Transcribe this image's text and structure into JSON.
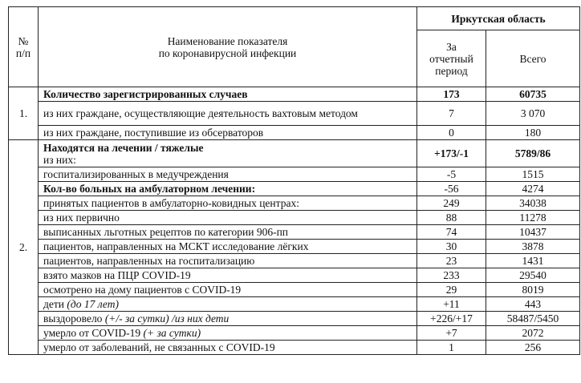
{
  "header": {
    "num": "№\nп/п",
    "name_line1": "Наименование показателя",
    "name_line2": "по коронавирусной инфекции",
    "region": "Иркутская область",
    "period": "За\nотчетный\nпериод",
    "total": "Всего"
  },
  "sections": [
    {
      "num": "1.",
      "rows": [
        {
          "text": "Количество зарегистрированных случаев",
          "bold": true,
          "period": "173",
          "total": "60735"
        },
        {
          "text": "из них граждане, осуществляющие деятельность вахтовым методом",
          "justify": true,
          "period": "7",
          "total": "3 070"
        },
        {
          "text": "из них граждане, поступившие из обсерваторов",
          "period": "0",
          "total": "180"
        }
      ]
    },
    {
      "num": "2.",
      "rows": [
        {
          "text": "Находятся на лечении / тяжелые",
          "bold": true,
          "sub": "из них:",
          "period": "+173/-1",
          "total": "5789/86",
          "bold_values": true
        },
        {
          "text": "госпитализированных в медучреждения",
          "period": "-5",
          "total": "1515"
        },
        {
          "text": "Кол-во больных на амбулаторном лечении:",
          "bold": true,
          "period": "-56",
          "total": "4274"
        },
        {
          "text": "принятых пациентов в амбулаторно-ковидных центрах:",
          "period": "249",
          "total": "34038"
        },
        {
          "text": "из них первично",
          "period": "88",
          "total": "11278"
        },
        {
          "text": "выписанных льготных рецептов по категории 906-пп",
          "period": "74",
          "total": "10437"
        },
        {
          "text": "пациентов, направленных на МСКТ исследование лёгких",
          "period": "30",
          "total": "3878"
        },
        {
          "text": "пациентов, направленных на госпитализацию",
          "period": "23",
          "total": "1431"
        },
        {
          "text": "взято мазков на ПЦР COVID-19",
          "period": "233",
          "total": "29540"
        },
        {
          "text": "осмотрено на дому пациентов с COVID-19",
          "period": "29",
          "total": "8019"
        },
        {
          "text": "дети ",
          "italic": "(до 17 лет)",
          "period": "+11",
          "total": "443"
        },
        {
          "text": "выздоровело ",
          "italic": "(+/- за сутки) /из них дети",
          "period": "+226/+17",
          "total": "58487/5450"
        },
        {
          "text": "умерло от COVID-19 ",
          "italic": "(+ за сутки)",
          "period": "+7",
          "total": "2072"
        },
        {
          "text": "умерло от заболеваний, не связанных с COVID-19",
          "period": "1",
          "total": "256"
        }
      ]
    }
  ]
}
